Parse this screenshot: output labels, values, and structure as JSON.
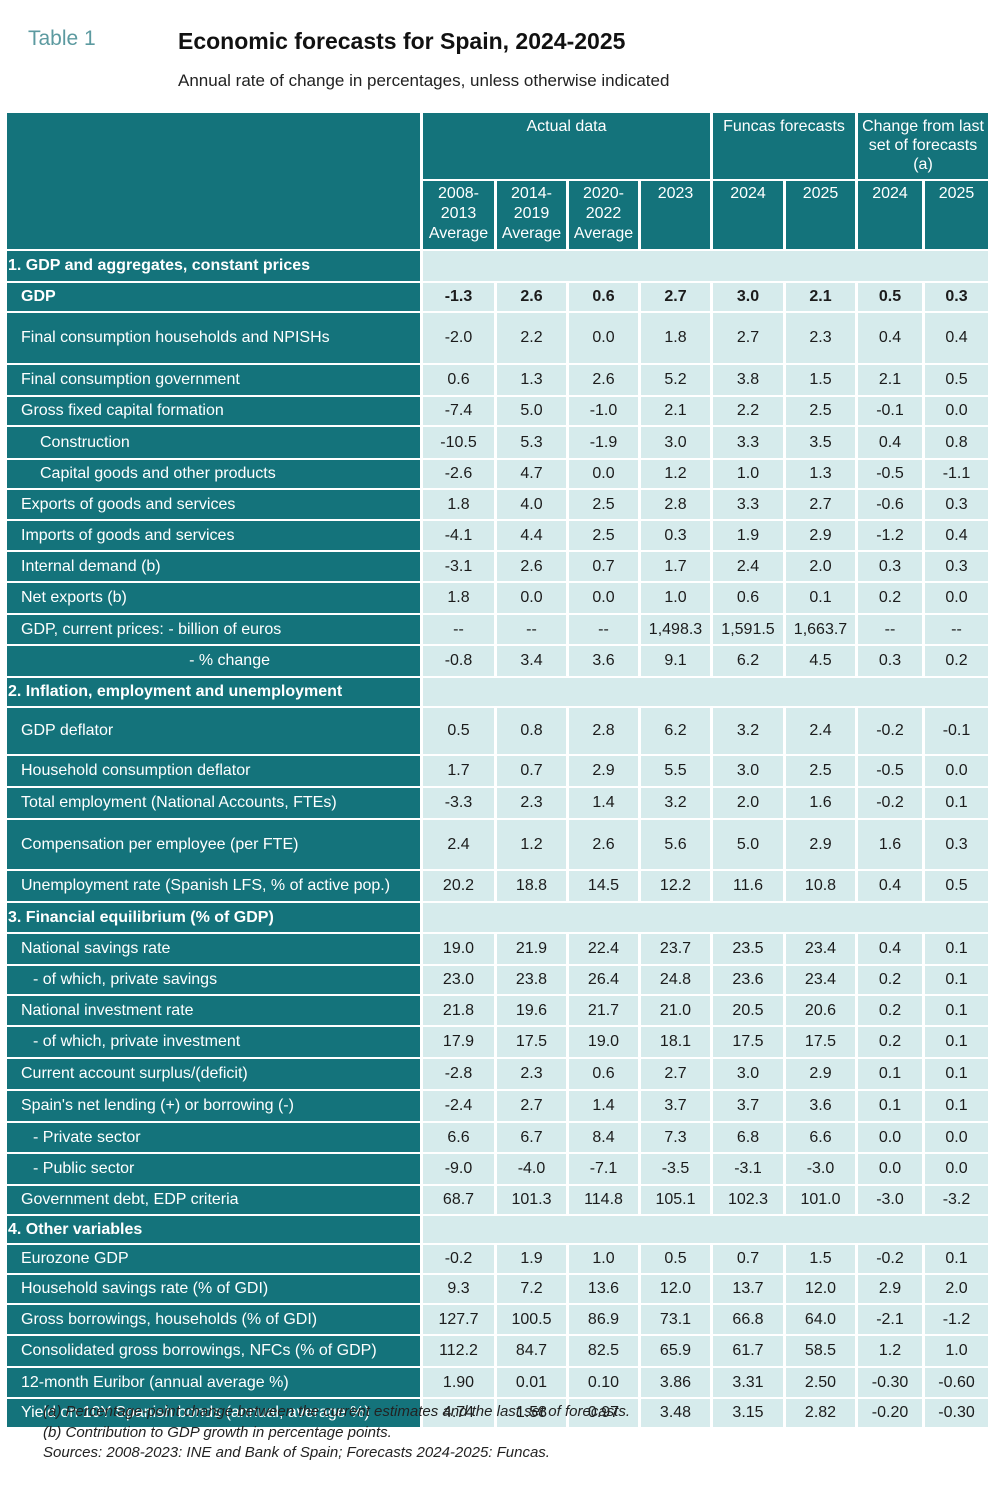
{
  "header": {
    "table_number": "Table 1",
    "title": "Economic forecasts for Spain, 2024-2025",
    "subtitle": "Annual rate of change in percentages, unless otherwise indicated"
  },
  "columns": {
    "group_actual": "Actual data",
    "group_forecast": "Funcas forecasts",
    "group_change": "Change from last set of forecasts (a)",
    "sub": [
      "2008-2013 Average",
      "2014-2019 Average",
      "2020-2022 Average",
      "2023",
      "2024",
      "2025",
      "2024",
      "2025"
    ]
  },
  "sections": [
    "1. GDP and aggregates, constant prices",
    "2. Inflation, employment and unemployment",
    "3. Financial equilibrium (% of GDP)",
    "4. Other variables"
  ],
  "rows": [
    {
      "label": "GDP",
      "values": [
        "-1.3",
        "2.6",
        "0.6",
        "2.7",
        "3.0",
        "2.1",
        "0.5",
        "0.3"
      ]
    },
    {
      "label": "Final consumption households and NPISHs",
      "values": [
        "-2.0",
        "2.2",
        "0.0",
        "1.8",
        "2.7",
        "2.3",
        "0.4",
        "0.4"
      ]
    },
    {
      "label": "Final consumption government",
      "values": [
        "0.6",
        "1.3",
        "2.6",
        "5.2",
        "3.8",
        "1.5",
        "2.1",
        "0.5"
      ]
    },
    {
      "label": "Gross fixed capital formation",
      "values": [
        "-7.4",
        "5.0",
        "-1.0",
        "2.1",
        "2.2",
        "2.5",
        "-0.1",
        "0.0"
      ]
    },
    {
      "label": "Construction",
      "values": [
        "-10.5",
        "5.3",
        "-1.9",
        "3.0",
        "3.3",
        "3.5",
        "0.4",
        "0.8"
      ]
    },
    {
      "label": "Capital goods and other products",
      "values": [
        "-2.6",
        "4.7",
        "0.0",
        "1.2",
        "1.0",
        "1.3",
        "-0.5",
        "-1.1"
      ]
    },
    {
      "label": "Exports of goods and services",
      "values": [
        "1.8",
        "4.0",
        "2.5",
        "2.8",
        "3.3",
        "2.7",
        "-0.6",
        "0.3"
      ]
    },
    {
      "label": "Imports of goods and services",
      "values": [
        "-4.1",
        "4.4",
        "2.5",
        "0.3",
        "1.9",
        "2.9",
        "-1.2",
        "0.4"
      ]
    },
    {
      "label": "Internal demand (b)",
      "values": [
        "-3.1",
        "2.6",
        "0.7",
        "1.7",
        "2.4",
        "2.0",
        "0.3",
        "0.3"
      ]
    },
    {
      "label": "Net exports (b)",
      "values": [
        "1.8",
        "0.0",
        "0.0",
        "1.0",
        "0.6",
        "0.1",
        "0.2",
        "0.0"
      ]
    },
    {
      "label": "GDP, current prices: - billion of euros",
      "values": [
        "--",
        "--",
        "--",
        "1,498.3",
        "1,591.5",
        "1,663.7",
        "--",
        "--"
      ]
    },
    {
      "label": "- % change",
      "values": [
        "-0.8",
        "3.4",
        "3.6",
        "9.1",
        "6.2",
        "4.5",
        "0.3",
        "0.2"
      ]
    },
    {
      "label": "GDP deflator",
      "values": [
        "0.5",
        "0.8",
        "2.8",
        "6.2",
        "3.2",
        "2.4",
        "-0.2",
        "-0.1"
      ]
    },
    {
      "label": "Household consumption deflator",
      "values": [
        "1.7",
        "0.7",
        "2.9",
        "5.5",
        "3.0",
        "2.5",
        "-0.5",
        "0.0"
      ]
    },
    {
      "label": "Total employment (National Accounts, FTEs)",
      "values": [
        "-3.3",
        "2.3",
        "1.4",
        "3.2",
        "2.0",
        "1.6",
        "-0.2",
        "0.1"
      ]
    },
    {
      "label": "Compensation per employee (per FTE)",
      "values": [
        "2.4",
        "1.2",
        "2.6",
        "5.6",
        "5.0",
        "2.9",
        "1.6",
        "0.3"
      ]
    },
    {
      "label": "Unemployment rate (Spanish LFS, % of active pop.)",
      "values": [
        "20.2",
        "18.8",
        "14.5",
        "12.2",
        "11.6",
        "10.8",
        "0.4",
        "0.5"
      ]
    },
    {
      "label": "National savings rate",
      "values": [
        "19.0",
        "21.9",
        "22.4",
        "23.7",
        "23.5",
        "23.4",
        "0.4",
        "0.1"
      ]
    },
    {
      "label": "- of which, private savings",
      "values": [
        "23.0",
        "23.8",
        "26.4",
        "24.8",
        "23.6",
        "23.4",
        "0.2",
        "0.1"
      ]
    },
    {
      "label": "National investment rate",
      "values": [
        "21.8",
        "19.6",
        "21.7",
        "21.0",
        "20.5",
        "20.6",
        "0.2",
        "0.1"
      ]
    },
    {
      "label": "- of which, private investment",
      "values": [
        "17.9",
        "17.5",
        "19.0",
        "18.1",
        "17.5",
        "17.5",
        "0.2",
        "0.1"
      ]
    },
    {
      "label": "Current account surplus/(deficit)",
      "values": [
        "-2.8",
        "2.3",
        "0.6",
        "2.7",
        "3.0",
        "2.9",
        "0.1",
        "0.1"
      ]
    },
    {
      "label": "Spain's net lending (+) or borrowing (-)",
      "values": [
        "-2.4",
        "2.7",
        "1.4",
        "3.7",
        "3.7",
        "3.6",
        "0.1",
        "0.1"
      ]
    },
    {
      "label": "- Private sector",
      "values": [
        "6.6",
        "6.7",
        "8.4",
        "7.3",
        "6.8",
        "6.6",
        "0.0",
        "0.0"
      ]
    },
    {
      "label": "- Public sector",
      "values": [
        "-9.0",
        "-4.0",
        "-7.1",
        "-3.5",
        "-3.1",
        "-3.0",
        "0.0",
        "0.0"
      ]
    },
    {
      "label": "Government debt, EDP criteria",
      "values": [
        "68.7",
        "101.3",
        "114.8",
        "105.1",
        "102.3",
        "101.0",
        "-3.0",
        "-3.2"
      ]
    },
    {
      "label": "Eurozone GDP",
      "values": [
        "-0.2",
        "1.9",
        "1.0",
        "0.5",
        "0.7",
        "1.5",
        "-0.2",
        "0.1"
      ]
    },
    {
      "label": "Household savings rate (% of GDI)",
      "values": [
        "9.3",
        "7.2",
        "13.6",
        "12.0",
        "13.7",
        "12.0",
        "2.9",
        "2.0"
      ]
    },
    {
      "label": "Gross borrowings, households (% of GDI)",
      "values": [
        "127.7",
        "100.5",
        "86.9",
        "73.1",
        "66.8",
        "64.0",
        "-2.1",
        "-1.2"
      ]
    },
    {
      "label": "Consolidated gross borrowings, NFCs   (% of GDP)",
      "values": [
        "112.2",
        "84.7",
        "82.5",
        "65.9",
        "61.7",
        "58.5",
        "1.2",
        "1.0"
      ]
    },
    {
      "label": "12-month Euribor (annual average %)",
      "values": [
        "1.90",
        "0.01",
        "0.10",
        "3.86",
        "3.31",
        "2.50",
        "-0.30",
        "-0.60"
      ]
    },
    {
      "label": "Yield on 10Y Spanish bonds (annual, average %)",
      "values": [
        "4.74",
        "1.58",
        "0.97",
        "3.48",
        "3.15",
        "2.82",
        "-0.20",
        "-0.30"
      ]
    }
  ],
  "notes": [
    "(a) Percentage-point change between the current estimates and the last set of forecasts.",
    "(b) Contribution to GDP growth in percentage points.",
    "Sources: 2008-2023: INE and Bank of Spain; Forecasts 2024-2025: Funcas."
  ]
}
